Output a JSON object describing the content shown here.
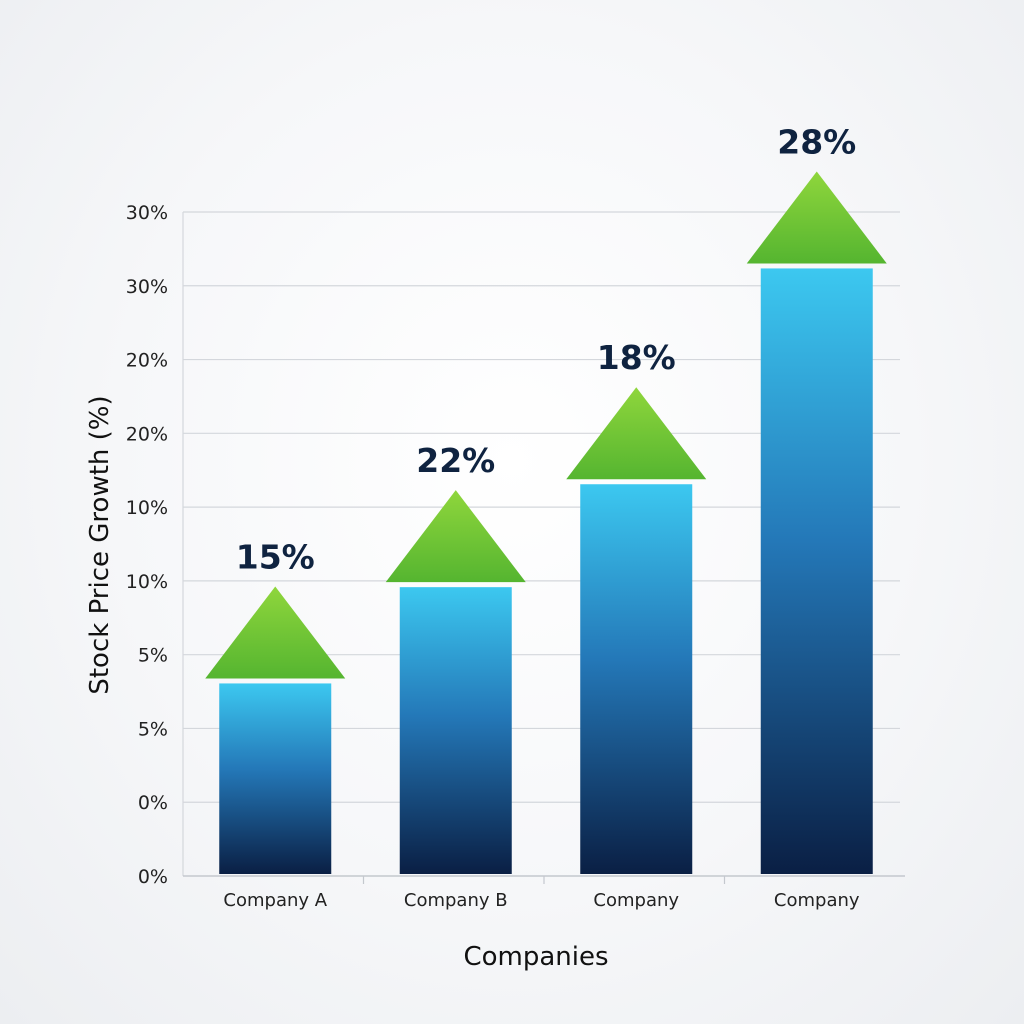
{
  "chart_data": {
    "type": "bar",
    "title": "",
    "xlabel": "Companies",
    "ylabel": "Stock Price Growth (%)",
    "ytick_labels": [
      "0%",
      "0%",
      "5%",
      "5%",
      "10%",
      "10%",
      "20%",
      "20%",
      "30%",
      "30%"
    ],
    "categories": [
      "Company A",
      "Company B",
      "Company",
      "Company"
    ],
    "values": [
      15,
      22,
      18,
      28
    ],
    "bar_levels": [
      0.29,
      0.435,
      0.59,
      0.915
    ],
    "data_labels": [
      "15%",
      "22%",
      "18%",
      "28%"
    ],
    "grid": true,
    "legend": "none",
    "colors": {
      "bar_top": "#3cc8f0",
      "bar_mid": "#2478b8",
      "bar_bottom": "#0a1f44",
      "arrow_top": "#8fd63c",
      "arrow_bottom": "#55b530",
      "label": "#0f2340"
    },
    "icons": [
      "up-arrow-icon"
    ]
  }
}
